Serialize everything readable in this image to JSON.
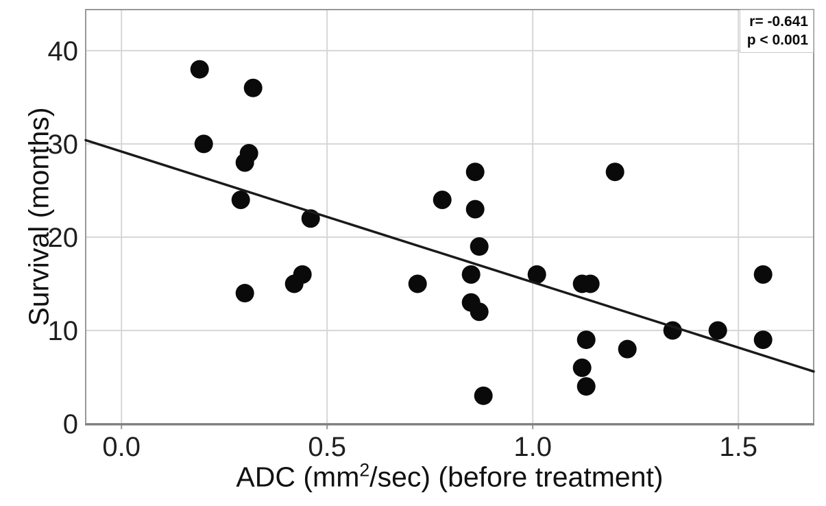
{
  "chart_data": {
    "type": "scatter",
    "title": "",
    "ylabel": "Survival (months)",
    "xlabel_parts": {
      "prefix": "ADC (mm",
      "sup": "2",
      "suffix": "/sec) (before treatment)"
    },
    "annotation": {
      "line1": "r= -0.641",
      "line2": "p < 0.001"
    },
    "xlim": [
      -0.087,
      1.683
    ],
    "ylim": [
      0,
      44.4
    ],
    "grid": true,
    "legend": "none",
    "x_ticks": [
      {
        "v": 0.0,
        "label": "0.0"
      },
      {
        "v": 0.5,
        "label": "0.5"
      },
      {
        "v": 1.0,
        "label": "1.0"
      },
      {
        "v": 1.5,
        "label": "1.5"
      }
    ],
    "y_ticks": [
      {
        "v": 0,
        "label": "0"
      },
      {
        "v": 10,
        "label": "10"
      },
      {
        "v": 20,
        "label": "20"
      },
      {
        "v": 30,
        "label": "30"
      },
      {
        "v": 40,
        "label": "40"
      }
    ],
    "points": [
      [
        0.19,
        38
      ],
      [
        0.32,
        36
      ],
      [
        0.2,
        30
      ],
      [
        0.31,
        29
      ],
      [
        0.3,
        28
      ],
      [
        0.29,
        24
      ],
      [
        0.3,
        14
      ],
      [
        0.46,
        22
      ],
      [
        0.44,
        16
      ],
      [
        0.42,
        15
      ],
      [
        0.72,
        15
      ],
      [
        0.78,
        24
      ],
      [
        0.86,
        27
      ],
      [
        0.86,
        23
      ],
      [
        0.87,
        19
      ],
      [
        0.85,
        16
      ],
      [
        0.85,
        13
      ],
      [
        0.87,
        12
      ],
      [
        0.88,
        3
      ],
      [
        1.01,
        16
      ],
      [
        1.12,
        15
      ],
      [
        1.14,
        15
      ],
      [
        1.13,
        9
      ],
      [
        1.12,
        6
      ],
      [
        1.13,
        4
      ],
      [
        1.2,
        27
      ],
      [
        1.23,
        8
      ],
      [
        1.34,
        10
      ],
      [
        1.45,
        10
      ],
      [
        1.56,
        16
      ],
      [
        1.56,
        9
      ]
    ],
    "regression_line": {
      "x1": -0.087,
      "y1": 30.4,
      "x2": 1.683,
      "y2": 5.6
    },
    "colors": {
      "point": "#0a0a0a",
      "line": "#1a1a1a",
      "grid": "#d6d6d6",
      "frame": "#989898",
      "axis": "#7f7f7f",
      "tick_text": "#1f1f1f",
      "annotation_border": "#c9c9c9",
      "background": "#ffffff"
    }
  }
}
